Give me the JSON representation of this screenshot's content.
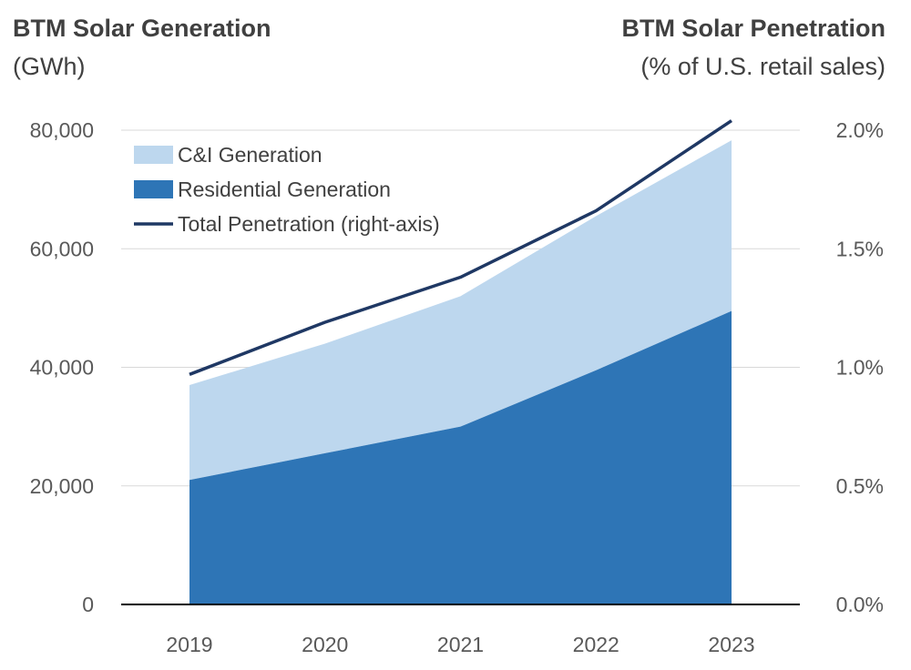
{
  "chart_data": {
    "type": "area",
    "title_left": "BTM Solar Generation",
    "unit_left": "(GWh)",
    "title_right": "BTM Solar Penetration",
    "unit_right": "(% of U.S. retail sales)",
    "categories": [
      "2019",
      "2020",
      "2021",
      "2022",
      "2023"
    ],
    "series": [
      {
        "name": "Residential Generation",
        "type": "area",
        "axis": "left",
        "color": "#2E75B6",
        "values": [
          21000,
          25500,
          30000,
          39500,
          49500
        ]
      },
      {
        "name": "C&I Generation",
        "type": "area",
        "axis": "left",
        "color": "#BDD7EE",
        "values": [
          16000,
          18500,
          22000,
          26000,
          28800
        ]
      },
      {
        "name": "Total Penetration (right-axis)",
        "type": "line",
        "axis": "right",
        "color": "#1F3864",
        "values": [
          0.97,
          1.19,
          1.38,
          1.66,
          2.04
        ]
      }
    ],
    "y_left": {
      "range": [
        0,
        80000
      ],
      "ticks": [
        0,
        20000,
        40000,
        60000,
        80000
      ],
      "tick_labels": [
        "0",
        "20,000",
        "40,000",
        "60,000",
        "80,000"
      ]
    },
    "y_right": {
      "range": [
        0,
        2.0
      ],
      "ticks": [
        0,
        0.5,
        1.0,
        1.5,
        2.0
      ],
      "tick_labels": [
        "0.0%",
        "0.5%",
        "1.0%",
        "1.5%",
        "2.0%"
      ]
    },
    "legend": {
      "position": "top-left",
      "entries": [
        "C&I Generation",
        "Residential Generation",
        "Total Penetration (right-axis)"
      ]
    },
    "grid": true
  }
}
